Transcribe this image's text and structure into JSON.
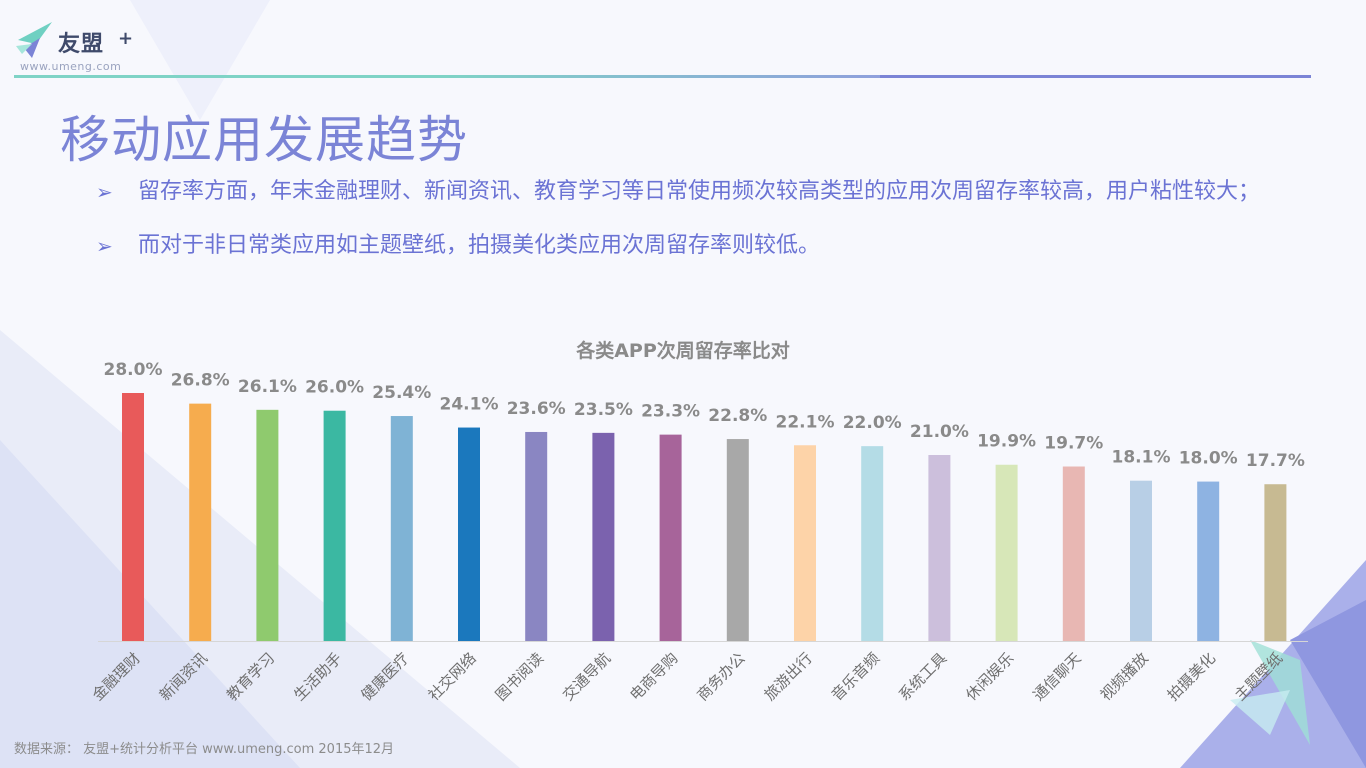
{
  "header": {
    "logo_text": "友盟",
    "logo_plus": "+",
    "logo_url": "www.umeng.com",
    "rule_colors": [
      "#7fd3c6",
      "#7fd3c6",
      "#7b84d6"
    ]
  },
  "page": {
    "title": "移动应用发展趋势",
    "bullets": [
      "留存率方面，年末金融理财、新闻资讯、教育学习等日常使用频次较高类型的应用次周留存率较高，用户粘性较大；",
      "而对于非日常类应用如主题壁纸，拍摄美化类应用次周留存率则较低。"
    ],
    "bullet_marker": "➢",
    "accent_color": "#7b84d6"
  },
  "chart_data": {
    "type": "bar",
    "title": "各类APP次周留存率比对",
    "categories": [
      "金融理财",
      "新闻资讯",
      "教育学习",
      "生活助手",
      "健康医疗",
      "社交网络",
      "图书阅读",
      "交通导航",
      "电商导购",
      "商务办公",
      "旅游出行",
      "音乐音频",
      "系统工具",
      "休闲娱乐",
      "通信聊天",
      "视频播放",
      "拍摄美化",
      "主题壁纸"
    ],
    "values": [
      28.0,
      26.8,
      26.1,
      26.0,
      25.4,
      24.1,
      23.6,
      23.5,
      23.3,
      22.8,
      22.1,
      22.0,
      21.0,
      19.9,
      19.7,
      18.1,
      18.0,
      17.7
    ],
    "labels": [
      "28.0%",
      "26.8%",
      "26.1%",
      "26.0%",
      "25.4%",
      "24.1%",
      "23.6%",
      "23.5%",
      "23.3%",
      "22.8%",
      "22.1%",
      "22.0%",
      "21.0%",
      "19.9%",
      "19.7%",
      "18.1%",
      "18.0%",
      "17.7%"
    ],
    "colors": [
      "#e85a5a",
      "#f6ac4e",
      "#8fca6e",
      "#3bb8a2",
      "#7fb3d5",
      "#1b78bd",
      "#8a86c2",
      "#7b62ae",
      "#a7649a",
      "#a8a8a8",
      "#fdd3a8",
      "#b4dce6",
      "#ccbfdc",
      "#d7e7b8",
      "#e8b7b3",
      "#b8cfe6",
      "#8eb3e2",
      "#c7ba92"
    ],
    "ylim": [
      0,
      28.0
    ],
    "grid": false,
    "xlabel": "",
    "ylabel": ""
  },
  "footer": {
    "source": "数据来源： 友盟+统计分析平台 www.umeng.com 2015年12月"
  }
}
